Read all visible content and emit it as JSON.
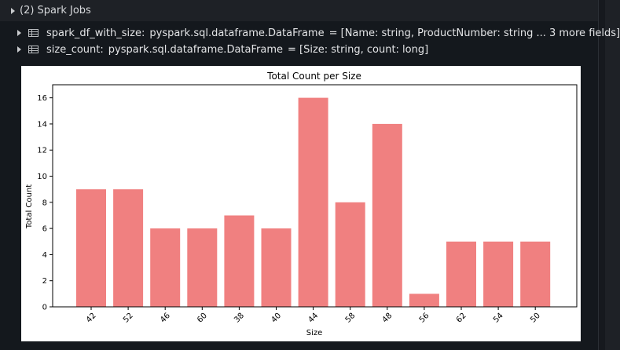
{
  "spark_jobs": {
    "label": "(2) Spark Jobs"
  },
  "dataframes": [
    {
      "name": "spark_df_with_size:",
      "type": "pyspark.sql.dataframe.DataFrame",
      "schema": "= [Name: string, ProductNumber: string ... 3 more fields]"
    },
    {
      "name": "size_count:",
      "type": "pyspark.sql.dataframe.DataFrame",
      "schema": "= [Size: string, count: long]"
    }
  ],
  "chart_data": {
    "type": "bar",
    "title": "Total Count per Size",
    "xlabel": "Size",
    "ylabel": "Total Count",
    "categories": [
      "42",
      "52",
      "46",
      "60",
      "38",
      "40",
      "44",
      "58",
      "48",
      "56",
      "62",
      "54",
      "50"
    ],
    "values": [
      9,
      9,
      6,
      6,
      7,
      6,
      16,
      8,
      14,
      1,
      5,
      5,
      5
    ],
    "ylim": [
      0,
      17
    ],
    "yticks": [
      "0",
      "2",
      "4",
      "6",
      "8",
      "10",
      "12",
      "14",
      "16"
    ],
    "bar_color": "#f08080",
    "grid": false,
    "legend": "none"
  }
}
